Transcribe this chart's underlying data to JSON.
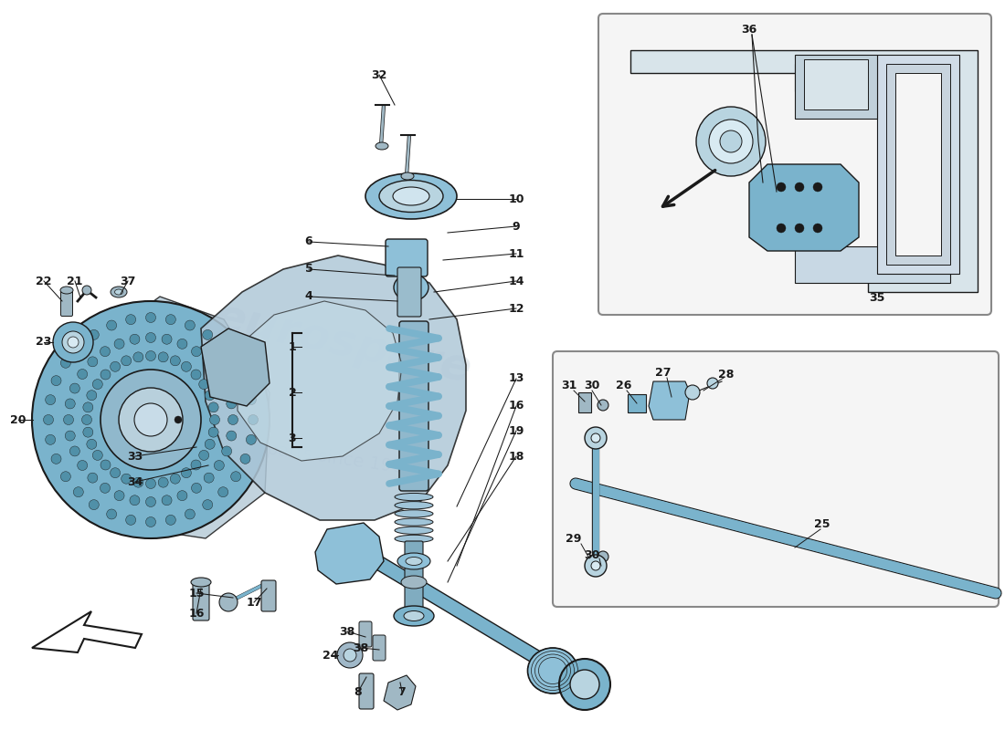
{
  "bg_color": "#ffffff",
  "blue": "#7ab3cc",
  "blue_dark": "#5090aa",
  "blue_mid": "#8ec0d8",
  "blue_light": "#b8d4e0",
  "line_color": "#1a1a1a",
  "grey_light": "#c8d4dc",
  "grey_mid": "#a0b8c4",
  "yellow_light": "#e8e8c0",
  "inset_bg": "#f5f5f5",
  "inset_edge": "#888888"
}
